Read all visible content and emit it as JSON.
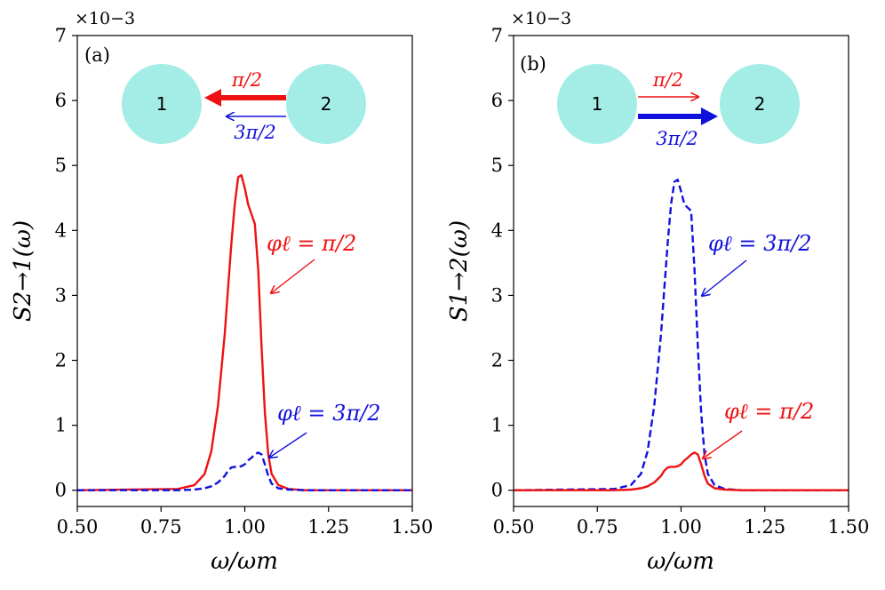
{
  "colors": {
    "red": "#ee1111",
    "blue": "#1111dd",
    "node": "#a3ede6"
  },
  "chart_data": [
    {
      "type": "line",
      "panel_label": "(a)",
      "xlabel": "ω/ωm",
      "ylabel": "S2→1(ω)",
      "xlim": [
        0.5,
        1.5
      ],
      "ylim": [
        -0.25,
        7
      ],
      "xticks": [
        "0.50",
        "0.75",
        "1.00",
        "1.25",
        "1.50"
      ],
      "yticks": [
        "0",
        "1",
        "2",
        "3",
        "4",
        "5",
        "6",
        "7"
      ],
      "scale_label": "×10−3",
      "x": [
        0.5,
        0.8,
        0.85,
        0.88,
        0.9,
        0.92,
        0.94,
        0.95,
        0.96,
        0.97,
        0.98,
        0.99,
        1.0,
        1.01,
        1.02,
        1.03,
        1.04,
        1.05,
        1.06,
        1.07,
        1.08,
        1.1,
        1.13,
        1.18,
        1.5
      ],
      "series": [
        {
          "name": "φℓ = π/2",
          "style": "solid",
          "color": "red",
          "values": [
            0,
            0.02,
            0.08,
            0.25,
            0.6,
            1.3,
            2.4,
            3.1,
            3.8,
            4.4,
            4.82,
            4.85,
            4.65,
            4.4,
            4.25,
            4.1,
            3.4,
            2.2,
            1.2,
            0.55,
            0.25,
            0.08,
            0.02,
            0,
            0
          ]
        },
        {
          "name": "φℓ = 3π/2",
          "style": "dashed",
          "color": "blue",
          "values": [
            0,
            0,
            0.01,
            0.03,
            0.06,
            0.12,
            0.22,
            0.3,
            0.35,
            0.36,
            0.36,
            0.37,
            0.4,
            0.46,
            0.5,
            0.55,
            0.58,
            0.55,
            0.4,
            0.22,
            0.1,
            0.03,
            0.01,
            0,
            0
          ]
        }
      ],
      "annotations": [
        {
          "text": "φℓ = π/2",
          "color": "red"
        },
        {
          "text": "φℓ = 3π/2",
          "color": "blue"
        }
      ],
      "schematic": {
        "node_left": "1",
        "node_right": "2",
        "top_label": "π/2",
        "bottom_label": "3π/2",
        "direction": "2→1"
      }
    },
    {
      "type": "line",
      "panel_label": "(b)",
      "xlabel": "ω/ωm",
      "ylabel": "S1→2(ω)",
      "xlim": [
        0.5,
        1.5
      ],
      "ylim": [
        -0.25,
        7
      ],
      "xticks": [
        "0.50",
        "0.75",
        "1.00",
        "1.25",
        "1.50"
      ],
      "yticks": [
        "0",
        "1",
        "2",
        "3",
        "4",
        "5",
        "6",
        "7"
      ],
      "scale_label": "×10−3",
      "x": [
        0.5,
        0.8,
        0.85,
        0.88,
        0.9,
        0.92,
        0.94,
        0.95,
        0.96,
        0.97,
        0.98,
        0.99,
        1.0,
        1.01,
        1.02,
        1.03,
        1.04,
        1.05,
        1.06,
        1.07,
        1.08,
        1.1,
        1.13,
        1.18,
        1.5
      ],
      "series": [
        {
          "name": "φℓ = 3π/2",
          "style": "dashed",
          "color": "blue",
          "values": [
            0,
            0.02,
            0.08,
            0.25,
            0.6,
            1.3,
            2.4,
            3.1,
            3.8,
            4.4,
            4.75,
            4.78,
            4.6,
            4.4,
            4.35,
            4.3,
            3.4,
            2.2,
            1.2,
            0.55,
            0.25,
            0.08,
            0.02,
            0,
            0
          ]
        },
        {
          "name": "φℓ = π/2",
          "style": "solid",
          "color": "red",
          "values": [
            0,
            0,
            0.01,
            0.03,
            0.06,
            0.12,
            0.22,
            0.3,
            0.35,
            0.36,
            0.36,
            0.37,
            0.4,
            0.46,
            0.5,
            0.55,
            0.58,
            0.55,
            0.4,
            0.22,
            0.1,
            0.03,
            0.01,
            0,
            0
          ]
        }
      ],
      "annotations": [
        {
          "text": "φℓ = 3π/2",
          "color": "blue"
        },
        {
          "text": "φℓ = π/2",
          "color": "red"
        }
      ],
      "schematic": {
        "node_left": "1",
        "node_right": "2",
        "top_label": "π/2",
        "bottom_label": "3π/2",
        "direction": "1→2"
      }
    }
  ]
}
